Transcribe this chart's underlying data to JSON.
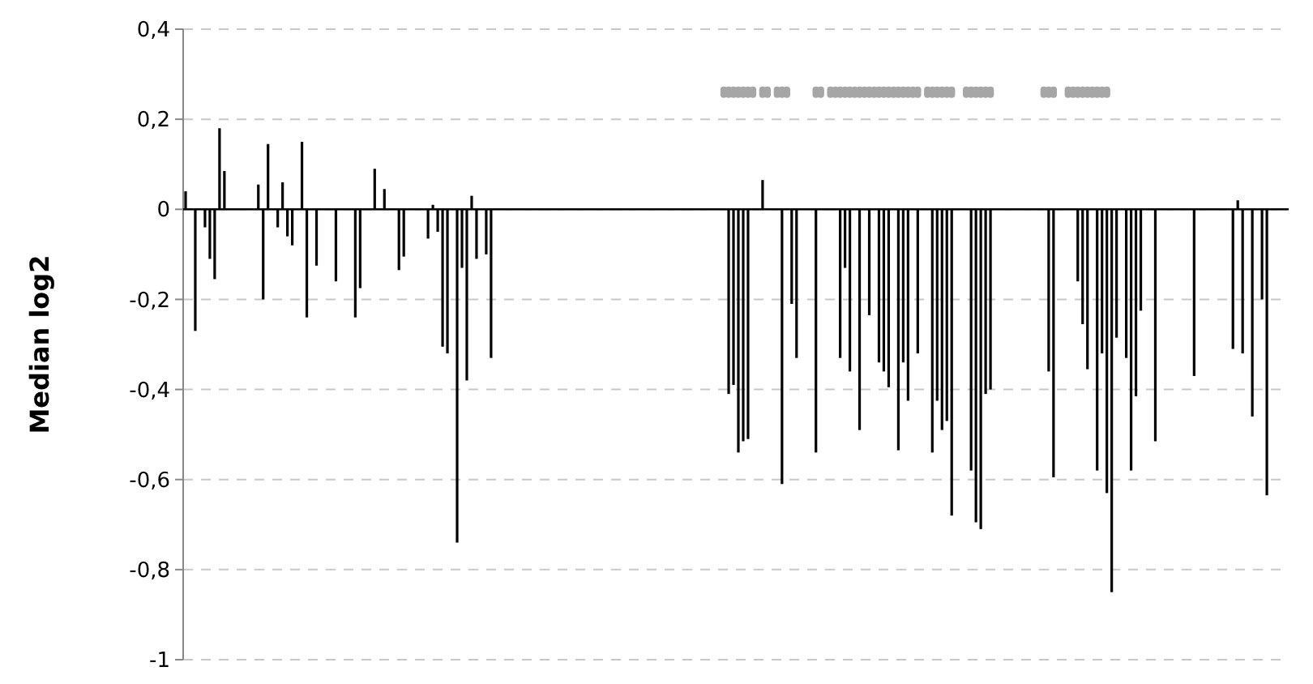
{
  "chart_data": {
    "type": "bar",
    "ylabel": "Median log2",
    "grid": "y",
    "ylim": [
      -1,
      0.4
    ],
    "yticks": [
      {
        "value": 0.4,
        "label": "0,4"
      },
      {
        "value": 0.2,
        "label": "0,2"
      },
      0,
      {
        "value": -0.2,
        "label": "-0,2"
      },
      {
        "value": -0.4,
        "label": "-0,4"
      },
      {
        "value": -0.6,
        "label": "-0,6"
      },
      {
        "value": -0.8,
        "label": "-0,8"
      },
      -1
    ],
    "tick_labels": "y",
    "categories": [
      null,
      null,
      null,
      null,
      null,
      null,
      null,
      null,
      null,
      null,
      null,
      null,
      null,
      null,
      null,
      null,
      null,
      null,
      null,
      null,
      null,
      null,
      null,
      null,
      null,
      null,
      null,
      null,
      null,
      null,
      null,
      null,
      null,
      null,
      null,
      null,
      null,
      null,
      null,
      null,
      null,
      null,
      null,
      null,
      null,
      null,
      null,
      null,
      null,
      null,
      null,
      null,
      null,
      null,
      null,
      null,
      null,
      null,
      null,
      null,
      null,
      null,
      null,
      null,
      null,
      null,
      null,
      null,
      null,
      null,
      null,
      null,
      null,
      null,
      null,
      null,
      null,
      null,
      null,
      null,
      null,
      null,
      null,
      null,
      null,
      null,
      null,
      null,
      null,
      null,
      null,
      null,
      null,
      null,
      null,
      null,
      null,
      null,
      null,
      null,
      null,
      null,
      null,
      null,
      null,
      null,
      null,
      null,
      null,
      null,
      null,
      null,
      null,
      null,
      null,
      null,
      null,
      null,
      null,
      null,
      null,
      null,
      null,
      null,
      null,
      null,
      null,
      null,
      null,
      null,
      null,
      null,
      null,
      null,
      null,
      null,
      null,
      null,
      null,
      null,
      null,
      null,
      null,
      null,
      null,
      null,
      null,
      null,
      null,
      null,
      null,
      null,
      null,
      null,
      null,
      null,
      null,
      null,
      null,
      null,
      null,
      null,
      null,
      null,
      null,
      null,
      null,
      null,
      null,
      null,
      null,
      null,
      null,
      null,
      null,
      null,
      null,
      null,
      null,
      null,
      null,
      null,
      null,
      null,
      null,
      null,
      null,
      null,
      null,
      null,
      null,
      null,
      null,
      null,
      null,
      null,
      null,
      null,
      null,
      null,
      null,
      null,
      null,
      null,
      null,
      null,
      null,
      null,
      null,
      null,
      null,
      null,
      null,
      null,
      null,
      null,
      null,
      null,
      null,
      null,
      null,
      null,
      null,
      null,
      null,
      null,
      null,
      null
    ],
    "series": [
      {
        "type": "bar",
        "color": "#000000",
        "values": [
          0.04,
          null,
          -0.27,
          null,
          -0.04,
          -0.11,
          -0.155,
          0.18,
          0.085,
          null,
          null,
          null,
          null,
          null,
          null,
          0.055,
          -0.2,
          0.145,
          null,
          -0.04,
          0.06,
          -0.06,
          -0.08,
          null,
          0.15,
          -0.24,
          null,
          -0.125,
          null,
          null,
          null,
          -0.16,
          null,
          null,
          null,
          -0.24,
          -0.175,
          null,
          null,
          0.09,
          null,
          0.045,
          null,
          null,
          -0.135,
          -0.105,
          null,
          null,
          null,
          null,
          -0.065,
          0.01,
          -0.05,
          -0.305,
          -0.32,
          null,
          -0.74,
          -0.13,
          -0.38,
          0.03,
          -0.11,
          null,
          -0.1,
          -0.33,
          null,
          null,
          null,
          null,
          null,
          null,
          null,
          null,
          null,
          null,
          null,
          null,
          null,
          null,
          null,
          null,
          null,
          null,
          null,
          null,
          null,
          null,
          null,
          null,
          null,
          null,
          null,
          null,
          null,
          null,
          null,
          null,
          null,
          null,
          null,
          null,
          null,
          null,
          null,
          null,
          null,
          null,
          null,
          null,
          null,
          null,
          null,
          null,
          -0.41,
          -0.39,
          -0.54,
          -0.515,
          -0.51,
          null,
          null,
          0.065,
          null,
          null,
          null,
          -0.61,
          null,
          -0.21,
          -0.33,
          null,
          null,
          null,
          -0.54,
          null,
          null,
          null,
          null,
          -0.33,
          -0.13,
          -0.36,
          null,
          -0.49,
          null,
          -0.235,
          null,
          -0.34,
          -0.36,
          -0.395,
          null,
          -0.535,
          -0.34,
          -0.425,
          null,
          -0.32,
          null,
          null,
          -0.54,
          -0.425,
          -0.49,
          -0.47,
          -0.68,
          null,
          null,
          null,
          -0.58,
          -0.695,
          -0.71,
          -0.41,
          -0.4,
          null,
          null,
          null,
          null,
          null,
          null,
          null,
          null,
          null,
          null,
          null,
          -0.36,
          -0.595,
          null,
          null,
          null,
          null,
          -0.16,
          -0.255,
          -0.355,
          null,
          -0.58,
          -0.32,
          -0.63,
          -0.85,
          -0.285,
          null,
          -0.33,
          -0.58,
          -0.415,
          -0.225,
          null,
          null,
          -0.515,
          null,
          null,
          null,
          null,
          null,
          null,
          null,
          -0.37,
          null,
          null,
          null,
          null,
          null,
          null,
          null,
          -0.31,
          0.02,
          -0.32,
          null,
          -0.46,
          null,
          -0.2,
          -0.635,
          null,
          null,
          null,
          null
        ]
      },
      {
        "type": "scatter",
        "marker": "square",
        "color": "#a6a6a6",
        "values": [
          null,
          null,
          null,
          null,
          null,
          null,
          null,
          null,
          null,
          null,
          null,
          null,
          null,
          null,
          null,
          null,
          null,
          null,
          null,
          null,
          null,
          null,
          null,
          null,
          null,
          null,
          null,
          null,
          null,
          null,
          null,
          null,
          null,
          null,
          null,
          null,
          null,
          null,
          null,
          null,
          null,
          null,
          null,
          null,
          null,
          null,
          null,
          null,
          null,
          null,
          null,
          null,
          null,
          null,
          null,
          null,
          null,
          null,
          null,
          null,
          null,
          null,
          null,
          null,
          null,
          null,
          null,
          null,
          null,
          null,
          null,
          null,
          null,
          null,
          null,
          null,
          null,
          null,
          null,
          null,
          null,
          null,
          null,
          null,
          null,
          null,
          null,
          null,
          null,
          null,
          null,
          null,
          null,
          null,
          null,
          null,
          null,
          null,
          null,
          null,
          null,
          null,
          null,
          null,
          null,
          null,
          null,
          null,
          null,
          null,
          null,
          0.26,
          0.26,
          0.26,
          0.26,
          0.26,
          0.26,
          0.26,
          null,
          0.26,
          0.26,
          null,
          0.26,
          0.26,
          0.26,
          null,
          null,
          null,
          null,
          null,
          0.26,
          0.26,
          null,
          0.26,
          0.26,
          0.26,
          0.26,
          0.26,
          0.26,
          0.26,
          0.26,
          0.26,
          0.26,
          0.26,
          0.26,
          0.26,
          0.26,
          0.26,
          0.26,
          0.26,
          0.26,
          0.26,
          null,
          0.26,
          0.26,
          0.26,
          0.26,
          0.26,
          0.26,
          null,
          null,
          0.26,
          0.26,
          0.26,
          0.26,
          0.26,
          0.26,
          null,
          null,
          null,
          null,
          null,
          null,
          null,
          null,
          null,
          null,
          0.26,
          0.26,
          0.26,
          null,
          null,
          0.26,
          0.26,
          0.26,
          0.26,
          0.26,
          0.26,
          0.26,
          0.26,
          0.26,
          null,
          null,
          null,
          null,
          null,
          null,
          null,
          null,
          null,
          null,
          null,
          null,
          null,
          null,
          null,
          null,
          null,
          null,
          null,
          null,
          null,
          null,
          null,
          null,
          null,
          null,
          null,
          null,
          null,
          null,
          null,
          null,
          null,
          null,
          null,
          null,
          null
        ]
      }
    ]
  }
}
